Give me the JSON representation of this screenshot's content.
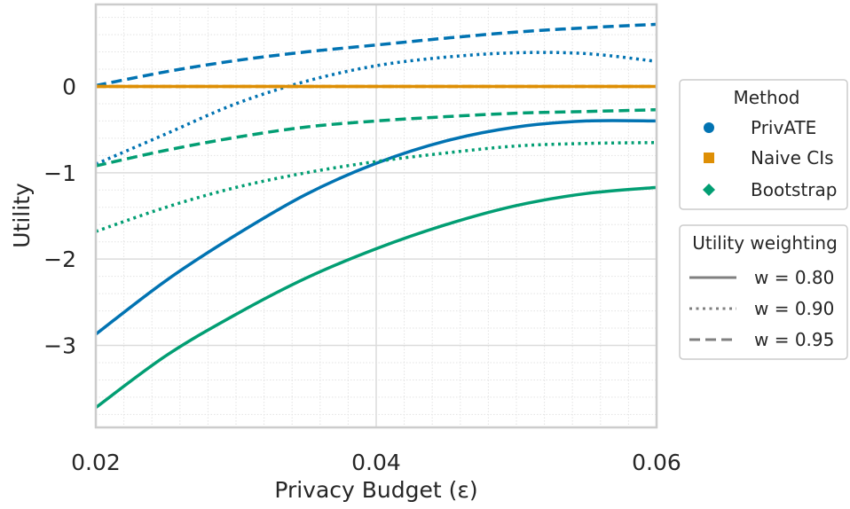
{
  "chart_data": {
    "type": "line",
    "title": "",
    "xlabel": "Privacy Budget (ε)",
    "ylabel": "Utility",
    "xlim": [
      0.02,
      0.06
    ],
    "ylim": [
      -3.95,
      0.95
    ],
    "xticks": [
      0.02,
      0.04,
      0.06
    ],
    "xtick_labels": [
      "0.02",
      "0.04",
      "0.06"
    ],
    "yticks": [
      0,
      -1,
      -2,
      -3
    ],
    "ytick_labels": [
      "0",
      "−1",
      "−2",
      "−3"
    ],
    "grid": true,
    "minor_grid": true,
    "colors": {
      "PrivATE": "#0173b2",
      "Naive CIs": "#de8f05",
      "Bootstrap": "#029e73"
    },
    "series": [
      {
        "method": "PrivATE",
        "weighting": "w = 0.80",
        "x": [
          0.02,
          0.025,
          0.03,
          0.035,
          0.04,
          0.045,
          0.05,
          0.055,
          0.06
        ],
        "y": [
          -2.87,
          -2.25,
          -1.72,
          -1.25,
          -0.89,
          -0.63,
          -0.47,
          -0.4,
          -0.4
        ]
      },
      {
        "method": "PrivATE",
        "weighting": "w = 0.90",
        "x": [
          0.02,
          0.025,
          0.03,
          0.035,
          0.04,
          0.045,
          0.05,
          0.055,
          0.06
        ],
        "y": [
          -0.9,
          -0.55,
          -0.2,
          0.06,
          0.24,
          0.34,
          0.39,
          0.38,
          0.29
        ]
      },
      {
        "method": "PrivATE",
        "weighting": "w = 0.95",
        "x": [
          0.02,
          0.025,
          0.03,
          0.035,
          0.04,
          0.045,
          0.05,
          0.055,
          0.06
        ],
        "y": [
          0.01,
          0.17,
          0.3,
          0.4,
          0.48,
          0.56,
          0.63,
          0.68,
          0.72
        ]
      },
      {
        "method": "Naive CIs",
        "weighting": "w = 0.80",
        "x": [
          0.02,
          0.06
        ],
        "y": [
          0.0,
          0.0
        ]
      },
      {
        "method": "Naive CIs",
        "weighting": "w = 0.90",
        "x": [
          0.02,
          0.06
        ],
        "y": [
          0.0,
          0.0
        ]
      },
      {
        "method": "Naive CIs",
        "weighting": "w = 0.95",
        "x": [
          0.02,
          0.06
        ],
        "y": [
          0.0,
          0.0
        ]
      },
      {
        "method": "Bootstrap",
        "weighting": "w = 0.80",
        "x": [
          0.02,
          0.025,
          0.03,
          0.035,
          0.04,
          0.045,
          0.05,
          0.055,
          0.06
        ],
        "y": [
          -3.72,
          -3.12,
          -2.64,
          -2.22,
          -1.88,
          -1.6,
          -1.38,
          -1.24,
          -1.17
        ]
      },
      {
        "method": "Bootstrap",
        "weighting": "w = 0.90",
        "x": [
          0.02,
          0.025,
          0.03,
          0.035,
          0.04,
          0.045,
          0.05,
          0.055,
          0.06
        ],
        "y": [
          -1.68,
          -1.4,
          -1.17,
          -1.0,
          -0.87,
          -0.77,
          -0.69,
          -0.66,
          -0.65
        ]
      },
      {
        "method": "Bootstrap",
        "weighting": "w = 0.95",
        "x": [
          0.02,
          0.025,
          0.03,
          0.035,
          0.04,
          0.045,
          0.05,
          0.055,
          0.06
        ],
        "y": [
          -0.92,
          -0.74,
          -0.59,
          -0.47,
          -0.4,
          -0.35,
          -0.31,
          -0.29,
          -0.27
        ]
      }
    ],
    "legend": {
      "placement": "right",
      "method": {
        "title": "Method",
        "entries": [
          {
            "label": "PrivATE",
            "marker": "circle",
            "color": "#0173b2"
          },
          {
            "label": "Naive CIs",
            "marker": "square",
            "color": "#de8f05"
          },
          {
            "label": "Bootstrap",
            "marker": "diamond",
            "color": "#029e73"
          }
        ]
      },
      "weighting": {
        "title": "Utility weighting",
        "entries": [
          {
            "label": "w = 0.80",
            "style": "solid"
          },
          {
            "label": "w = 0.90",
            "style": "dotted"
          },
          {
            "label": "w = 0.95",
            "style": "dashed"
          }
        ]
      }
    }
  }
}
